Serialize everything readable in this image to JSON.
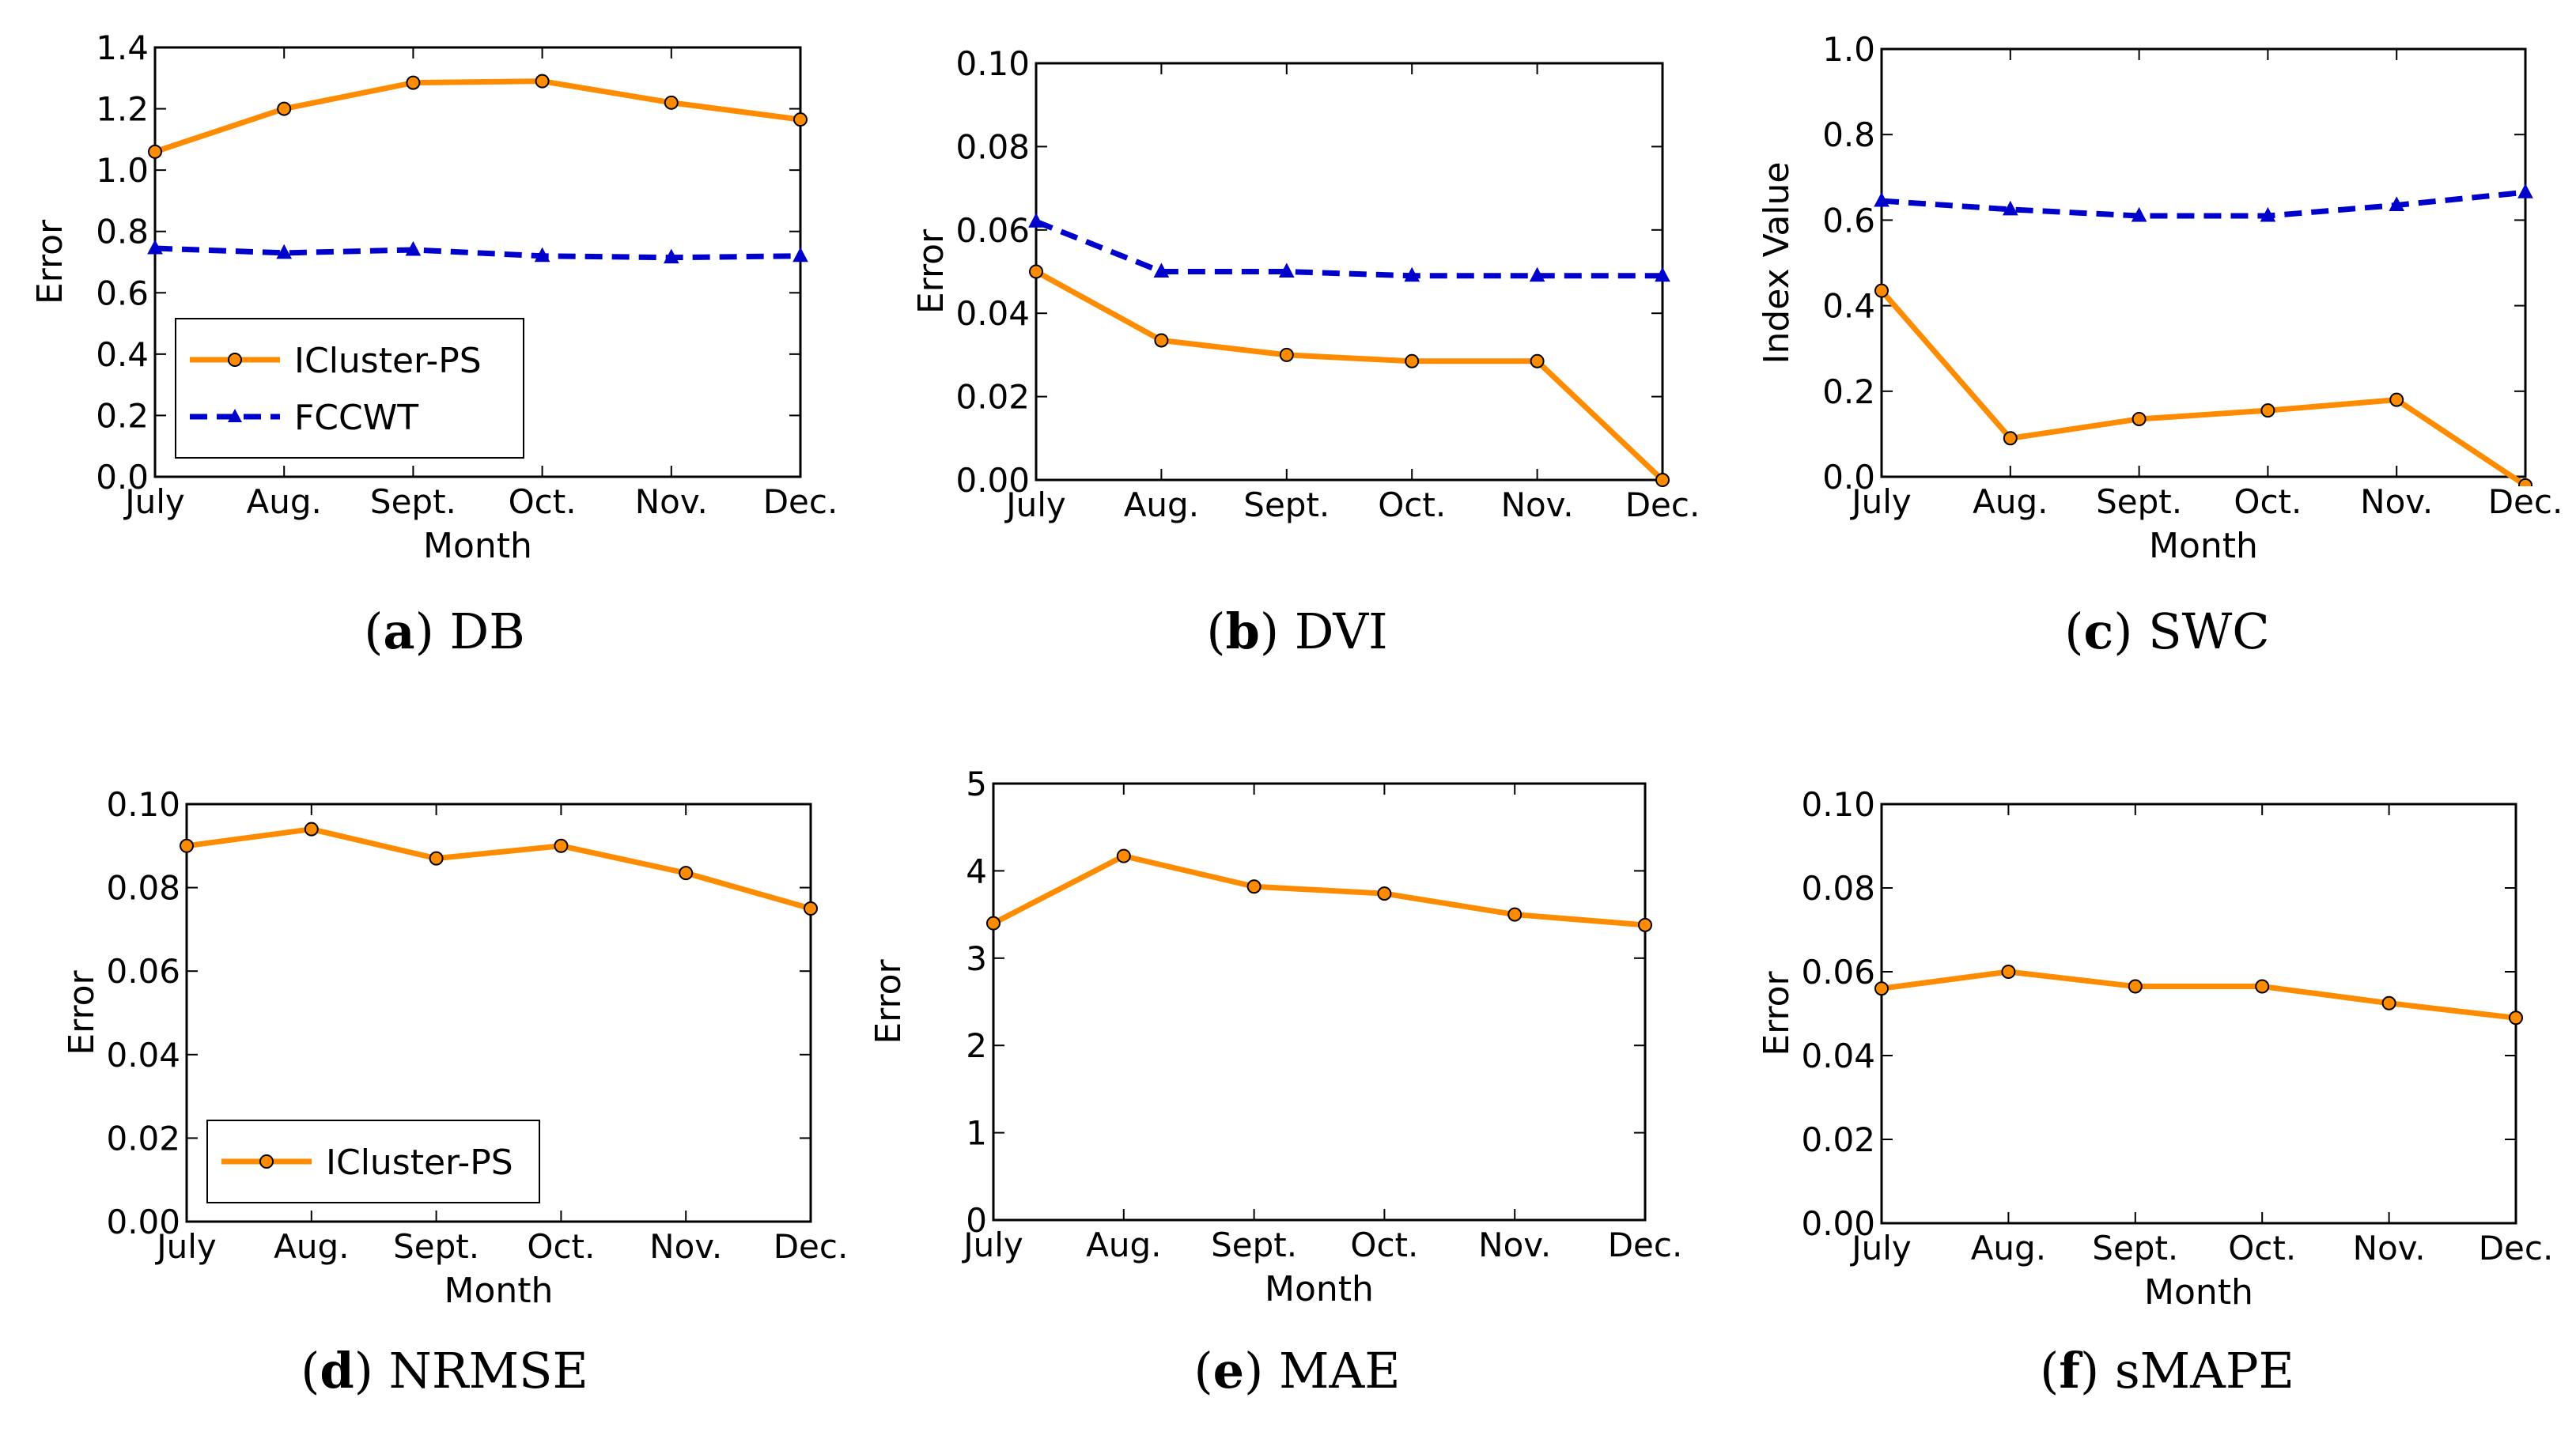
{
  "colors": {
    "icluster": "#ff8c00",
    "fccwt": "#0000cc",
    "axis": "#000000",
    "background": "#ffffff"
  },
  "chart_data": [
    {
      "type": "line",
      "caption_letter": "a",
      "caption_text": "DB",
      "categories": [
        "July",
        "Aug.",
        "Sept.",
        "Oct.",
        "Nov.",
        "Dec."
      ],
      "xlabel": "Month",
      "ylabel": "Error",
      "ylim": [
        0,
        1.4
      ],
      "yticks": [
        "0.0",
        "0.2",
        "0.4",
        "0.6",
        "0.8",
        "1.0",
        "1.2",
        "1.4"
      ],
      "legend": "bottom-left",
      "series": [
        {
          "name": "ICluster-PS",
          "values": [
            1.06,
            1.2,
            1.285,
            1.29,
            1.22,
            1.165
          ]
        },
        {
          "name": "FCCWT",
          "values": [
            0.745,
            0.73,
            0.74,
            0.72,
            0.715,
            0.72
          ]
        }
      ]
    },
    {
      "type": "line",
      "caption_letter": "b",
      "caption_text": "DVI",
      "categories": [
        "July",
        "Aug.",
        "Sept.",
        "Oct.",
        "Nov.",
        "Dec."
      ],
      "xlabel": "",
      "ylabel": "Error",
      "ylim": [
        0,
        0.1
      ],
      "yticks": [
        "0.00",
        "0.02",
        "0.04",
        "0.06",
        "0.08",
        "0.10"
      ],
      "legend": "none",
      "series": [
        {
          "name": "ICluster-PS",
          "values": [
            0.05,
            0.0335,
            0.03,
            0.0285,
            0.0285,
            0.0
          ]
        },
        {
          "name": "FCCWT",
          "values": [
            0.062,
            0.05,
            0.05,
            0.049,
            0.049,
            0.049
          ]
        }
      ]
    },
    {
      "type": "line",
      "caption_letter": "c",
      "caption_text": "SWC",
      "categories": [
        "July",
        "Aug.",
        "Sept.",
        "Oct.",
        "Nov.",
        "Dec."
      ],
      "xlabel": "Month",
      "ylabel": "Index Value",
      "ylim": [
        0,
        1.0
      ],
      "yticks": [
        "0.0",
        "0.2",
        "0.4",
        "0.6",
        "0.8",
        "1.0"
      ],
      "legend": "none",
      "series": [
        {
          "name": "ICluster-PS",
          "values": [
            0.435,
            0.09,
            0.135,
            0.155,
            0.18,
            -0.02
          ]
        },
        {
          "name": "FCCWT",
          "values": [
            0.645,
            0.625,
            0.61,
            0.61,
            0.635,
            0.665
          ]
        }
      ]
    },
    {
      "type": "line",
      "caption_letter": "d",
      "caption_text": "NRMSE",
      "categories": [
        "July",
        "Aug.",
        "Sept.",
        "Oct.",
        "Nov.",
        "Dec."
      ],
      "xlabel": "Month",
      "ylabel": "Error",
      "ylim": [
        0,
        0.1
      ],
      "yticks": [
        "0.00",
        "0.02",
        "0.04",
        "0.06",
        "0.08",
        "0.10"
      ],
      "legend": "bottom-left",
      "series": [
        {
          "name": "ICluster-PS",
          "values": [
            0.09,
            0.094,
            0.087,
            0.09,
            0.0835,
            0.075
          ]
        }
      ]
    },
    {
      "type": "line",
      "caption_letter": "e",
      "caption_text": "MAE",
      "categories": [
        "July",
        "Aug.",
        "Sept.",
        "Oct.",
        "Nov.",
        "Dec."
      ],
      "xlabel": "Month",
      "ylabel": "Error",
      "ylim": [
        0,
        5
      ],
      "yticks": [
        "0",
        "1",
        "2",
        "3",
        "4",
        "5"
      ],
      "legend": "none",
      "series": [
        {
          "name": "ICluster-PS",
          "values": [
            3.4,
            4.17,
            3.82,
            3.74,
            3.5,
            3.38
          ]
        }
      ]
    },
    {
      "type": "line",
      "caption_letter": "f",
      "caption_text": "sMAPE",
      "categories": [
        "July",
        "Aug.",
        "Sept.",
        "Oct.",
        "Nov.",
        "Dec."
      ],
      "xlabel": "Month",
      "ylabel": "Error",
      "ylim": [
        0,
        0.1
      ],
      "yticks": [
        "0.00",
        "0.02",
        "0.04",
        "0.06",
        "0.08",
        "0.10"
      ],
      "legend": "none",
      "series": [
        {
          "name": "ICluster-PS",
          "values": [
            0.056,
            0.06,
            0.0565,
            0.0565,
            0.0525,
            0.049
          ]
        }
      ]
    }
  ]
}
